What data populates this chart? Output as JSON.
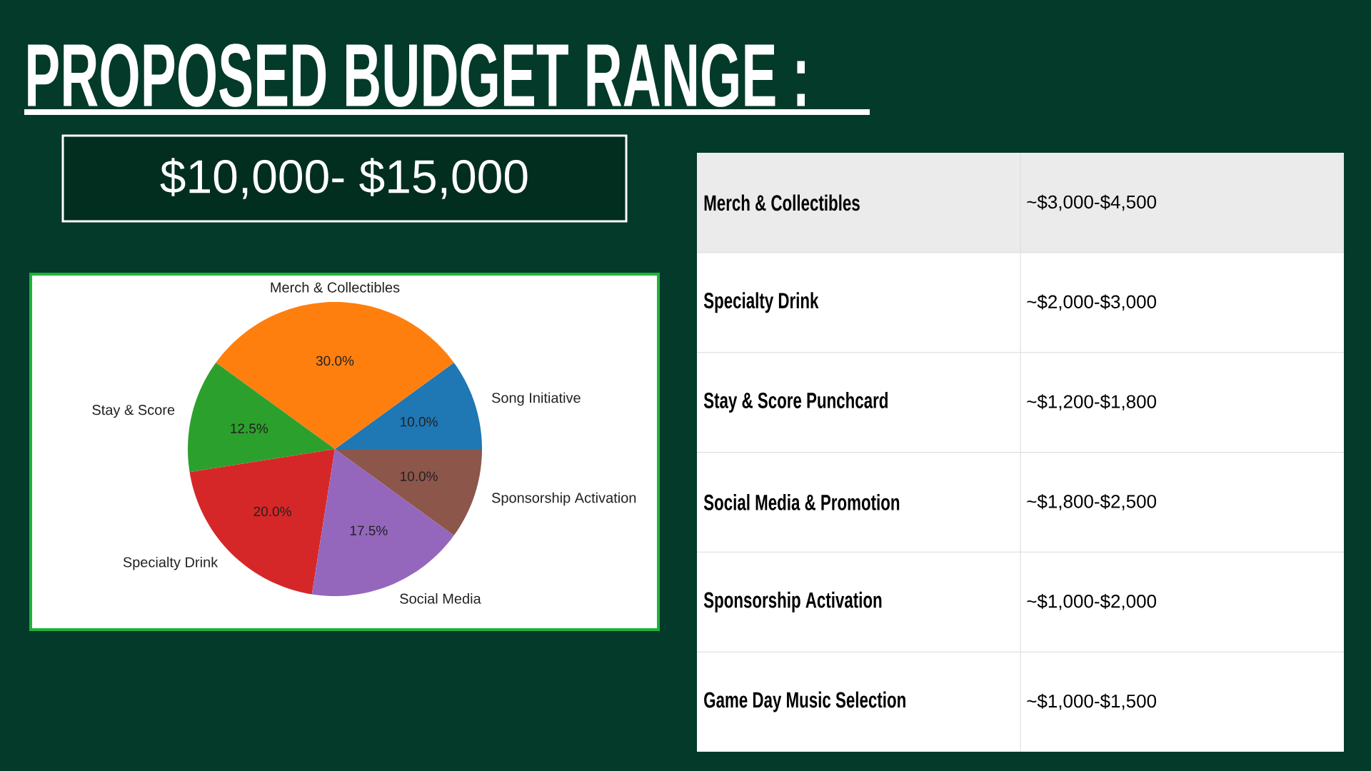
{
  "chart_data": [
    {
      "type": "pie",
      "title": "PROPOSED BUDGET RANGE :",
      "subtitle": "$10,000- $15,000",
      "categories": [
        "Song Initiative",
        "Merch & Collectibles",
        "Stay & Score",
        "Specialty Drink",
        "Social Media",
        "Sponsorship Activation"
      ],
      "values": [
        10,
        30,
        12.5,
        20,
        17.5,
        10
      ],
      "colors": [
        "#1f77b4",
        "#ff7f0e",
        "#2ca02c",
        "#d62728",
        "#9467bd",
        "#8c564b"
      ],
      "value_labels": [
        "10.0%",
        "30.0%",
        "12.5%",
        "20.0%",
        "17.5%",
        "10.0%"
      ]
    },
    {
      "type": "other",
      "categories": [
        "Merch & Collectibles",
        "Specialty Drink",
        "Stay & Score Punchcard",
        "Social Media & Promotion",
        "Sponsorship Activation",
        "Game Day Music Selection"
      ],
      "annotations": [
        "~$3,000-$4,500",
        "~$2,000-$3,000",
        "~$1,200-$1,800",
        "~$1,800-$2,500",
        "~$1,000-$2,000",
        "~$1,000-$1,500"
      ]
    }
  ]
}
